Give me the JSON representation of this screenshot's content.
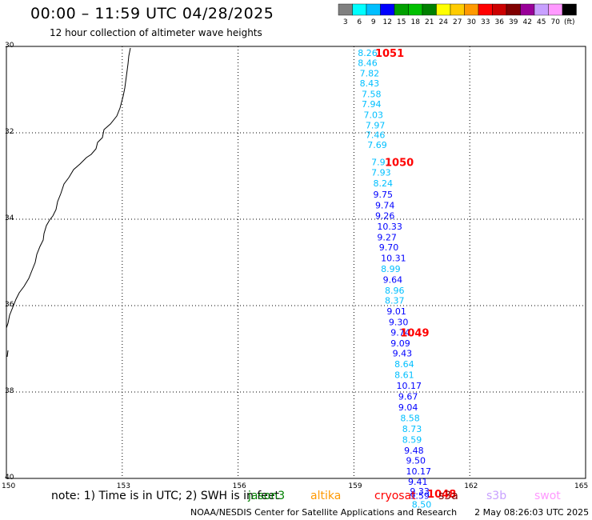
{
  "header": {
    "title": "00:00 – 11:59 UTC 04/28/2025",
    "subtitle": "12 hour collection of altimeter wave heights"
  },
  "legend": {
    "bins": [
      {
        "label": "3",
        "color": "#808080"
      },
      {
        "label": "6",
        "color": "#00ffff"
      },
      {
        "label": "9",
        "color": "#00bfff"
      },
      {
        "label": "12",
        "color": "#0000ff"
      },
      {
        "label": "15",
        "color": "#00a000"
      },
      {
        "label": "18",
        "color": "#00c000"
      },
      {
        "label": "21",
        "color": "#008000"
      },
      {
        "label": "24",
        "color": "#ffff00"
      },
      {
        "label": "27",
        "color": "#ffcc00"
      },
      {
        "label": "30",
        "color": "#ff9900"
      },
      {
        "label": "33",
        "color": "#ff0000"
      },
      {
        "label": "36",
        "color": "#cc0000"
      },
      {
        "label": "39",
        "color": "#800000"
      },
      {
        "label": "42",
        "color": "#990099"
      },
      {
        "label": "45",
        "color": "#c8a0ff"
      },
      {
        "label": "70",
        "color": "#ff99ff"
      },
      {
        "label": "(ft)",
        "color": "#000000"
      }
    ]
  },
  "axes": {
    "lon_ticks": [
      "150",
      "153",
      "156",
      "159",
      "162",
      "165"
    ],
    "lat_ticks": [
      "30",
      "32",
      "34",
      "36",
      "38",
      "40"
    ],
    "lon_range": [
      150,
      165
    ],
    "lat_range": [
      30,
      40
    ]
  },
  "observations": [
    {
      "lon": 159.1,
      "lat": 30.15,
      "value": "8.26"
    },
    {
      "lon": 159.1,
      "lat": 30.38,
      "value": "8.46"
    },
    {
      "lon": 159.15,
      "lat": 30.62,
      "value": "7.82"
    },
    {
      "lon": 159.15,
      "lat": 30.85,
      "value": "8.43"
    },
    {
      "lon": 159.2,
      "lat": 31.1,
      "value": "7.58"
    },
    {
      "lon": 159.2,
      "lat": 31.33,
      "value": "7.94"
    },
    {
      "lon": 159.25,
      "lat": 31.58,
      "value": "7.03"
    },
    {
      "lon": 159.3,
      "lat": 31.82,
      "value": "7.97"
    },
    {
      "lon": 159.3,
      "lat": 32.05,
      "value": "7.46"
    },
    {
      "lon": 159.35,
      "lat": 32.28,
      "value": "7.69"
    },
    {
      "lon": 159.45,
      "lat": 32.68,
      "value": "7.97"
    },
    {
      "lon": 159.45,
      "lat": 32.92,
      "value": "7.93"
    },
    {
      "lon": 159.5,
      "lat": 33.17,
      "value": "8.24"
    },
    {
      "lon": 159.5,
      "lat": 33.43,
      "value": "9.75"
    },
    {
      "lon": 159.55,
      "lat": 33.68,
      "value": "9.74"
    },
    {
      "lon": 159.55,
      "lat": 33.92,
      "value": "9.26"
    },
    {
      "lon": 159.6,
      "lat": 34.17,
      "value": "10.33"
    },
    {
      "lon": 159.6,
      "lat": 34.42,
      "value": "9.27"
    },
    {
      "lon": 159.65,
      "lat": 34.65,
      "value": "9.70"
    },
    {
      "lon": 159.7,
      "lat": 34.9,
      "value": "10.31"
    },
    {
      "lon": 159.7,
      "lat": 35.15,
      "value": "8.99"
    },
    {
      "lon": 159.75,
      "lat": 35.4,
      "value": "9.64"
    },
    {
      "lon": 159.8,
      "lat": 35.65,
      "value": "8.96"
    },
    {
      "lon": 159.8,
      "lat": 35.88,
      "value": "8.37"
    },
    {
      "lon": 159.85,
      "lat": 36.13,
      "value": "9.01"
    },
    {
      "lon": 159.9,
      "lat": 36.38,
      "value": "9.30"
    },
    {
      "lon": 159.95,
      "lat": 36.62,
      "value": "9.74"
    },
    {
      "lon": 159.95,
      "lat": 36.87,
      "value": "9.09"
    },
    {
      "lon": 160.0,
      "lat": 37.1,
      "value": "9.43"
    },
    {
      "lon": 160.05,
      "lat": 37.35,
      "value": "8.64"
    },
    {
      "lon": 160.05,
      "lat": 37.6,
      "value": "8.61"
    },
    {
      "lon": 160.1,
      "lat": 37.85,
      "value": "10.17"
    },
    {
      "lon": 160.15,
      "lat": 38.1,
      "value": "9.67"
    },
    {
      "lon": 160.15,
      "lat": 38.35,
      "value": "9.04"
    },
    {
      "lon": 160.2,
      "lat": 38.6,
      "value": "8.58"
    },
    {
      "lon": 160.25,
      "lat": 38.85,
      "value": "8.73"
    },
    {
      "lon": 160.25,
      "lat": 39.1,
      "value": "8.59"
    },
    {
      "lon": 160.3,
      "lat": 39.35,
      "value": "9.48"
    },
    {
      "lon": 160.35,
      "lat": 39.58,
      "value": "9.50"
    },
    {
      "lon": 160.35,
      "lat": 39.83,
      "value": "10.17"
    },
    {
      "lon": 160.4,
      "lat": 40.07,
      "value": "9.41"
    },
    {
      "lon": 160.45,
      "lat": 40.3,
      "value": "9.33"
    },
    {
      "lon": 160.45,
      "lat": 40.4,
      "value": "9.59"
    },
    {
      "lon": 160.5,
      "lat": 40.6,
      "value": "8.50"
    }
  ],
  "pass_labels": [
    {
      "lon": 159.55,
      "lat": 30.15,
      "text": "1051"
    },
    {
      "lon": 159.8,
      "lat": 32.68,
      "text": "1050"
    },
    {
      "lon": 160.2,
      "lat": 36.62,
      "text": "1049"
    },
    {
      "lon": 160.9,
      "lat": 40.35,
      "text": "1048"
    }
  ],
  "footer": {
    "note": "note:  1) Time is in UTC;  2) SWH is in feet",
    "satellites": [
      {
        "name": "jason3",
        "color": "#008000"
      },
      {
        "name": "altika",
        "color": "#ff9900"
      },
      {
        "name": "cryosat",
        "color": "#ff0000"
      },
      {
        "name": "s3a",
        "color": "#800000"
      },
      {
        "name": "s3b",
        "color": "#c8a0ff"
      },
      {
        "name": "swot",
        "color": "#ff99ff"
      }
    ],
    "credit": "NOAA/NESDIS Center for Satellite Applications and Research",
    "timestamp": "2 May 08:26:03 UTC 2025"
  }
}
